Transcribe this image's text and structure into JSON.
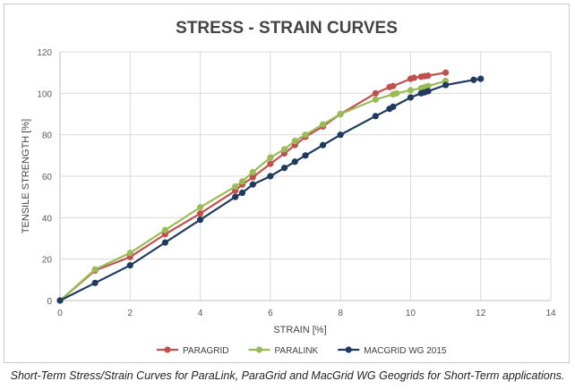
{
  "chart_data": {
    "type": "line",
    "title": "STRESS - STRAIN CURVES",
    "xlabel": "STRAIN [%]",
    "ylabel": "TENSILE STRENGTH [%]",
    "xlim": [
      0,
      14
    ],
    "ylim": [
      0,
      120
    ],
    "xticks": [
      0,
      2,
      4,
      6,
      8,
      10,
      12,
      14
    ],
    "yticks": [
      0,
      20,
      40,
      60,
      80,
      100,
      120
    ],
    "grid": true,
    "legend_position": "bottom",
    "series": [
      {
        "name": "PARAGRID",
        "color": "#c0504d",
        "points": [
          [
            0,
            0
          ],
          [
            1,
            14.5
          ],
          [
            2,
            21
          ],
          [
            3,
            32
          ],
          [
            4,
            42
          ],
          [
            5,
            53
          ],
          [
            5.2,
            56
          ],
          [
            5.5,
            59.5
          ],
          [
            6,
            66
          ],
          [
            6.4,
            71
          ],
          [
            6.7,
            75
          ],
          [
            7,
            79
          ],
          [
            7.5,
            84
          ],
          [
            8,
            90
          ],
          [
            9,
            100
          ],
          [
            9.4,
            103
          ],
          [
            9.5,
            103.5
          ],
          [
            10,
            107
          ],
          [
            10.1,
            107.5
          ],
          [
            10.3,
            108
          ],
          [
            10.4,
            108.3
          ],
          [
            10.5,
            108.5
          ],
          [
            11,
            110
          ]
        ]
      },
      {
        "name": "PARALINK",
        "color": "#9bbb59",
        "points": [
          [
            0,
            0
          ],
          [
            1,
            15
          ],
          [
            2,
            23
          ],
          [
            3,
            34
          ],
          [
            4,
            45
          ],
          [
            5,
            55
          ],
          [
            5.2,
            57.5
          ],
          [
            5.5,
            62
          ],
          [
            6,
            69
          ],
          [
            6.4,
            73
          ],
          [
            6.7,
            77
          ],
          [
            7,
            80
          ],
          [
            7.5,
            85
          ],
          [
            8,
            90
          ],
          [
            9,
            97
          ],
          [
            9.5,
            99.5
          ],
          [
            9.6,
            100
          ],
          [
            10,
            101.5
          ],
          [
            10.3,
            102.5
          ],
          [
            10.4,
            103
          ],
          [
            10.5,
            103.5
          ],
          [
            11,
            106
          ]
        ]
      },
      {
        "name": "MACGRID WG 2015",
        "color": "#1f3a5f",
        "points": [
          [
            0,
            0
          ],
          [
            1,
            8.5
          ],
          [
            2,
            17
          ],
          [
            3,
            28
          ],
          [
            4,
            39
          ],
          [
            5,
            50
          ],
          [
            5.2,
            52
          ],
          [
            5.5,
            56
          ],
          [
            6,
            60
          ],
          [
            6.4,
            64
          ],
          [
            6.7,
            67
          ],
          [
            7,
            70
          ],
          [
            7.5,
            75
          ],
          [
            8,
            80
          ],
          [
            9,
            89
          ],
          [
            9.4,
            92.5
          ],
          [
            9.5,
            93.5
          ],
          [
            10,
            98
          ],
          [
            10.3,
            100
          ],
          [
            10.4,
            100.5
          ],
          [
            10.5,
            101
          ],
          [
            11,
            104
          ],
          [
            11.8,
            106.5
          ],
          [
            12,
            107
          ]
        ]
      }
    ]
  },
  "caption": "Short-Term Stress/Strain Curves for ParaLink, ParaGrid and MacGrid WG Geogrids for Short-Term applications."
}
